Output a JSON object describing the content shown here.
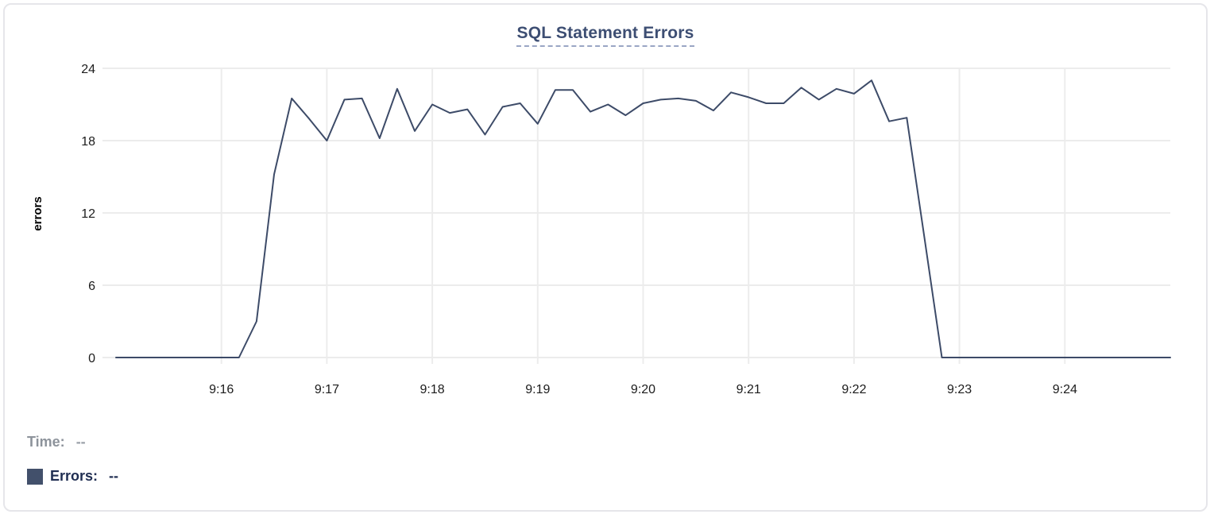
{
  "header": {
    "title": "SQL Statement Errors"
  },
  "tooltip_readout": {
    "time_label": "Time:",
    "time_value": "--",
    "errors_label": "Errors:",
    "errors_value": "--",
    "swatch_color": "#42506b"
  },
  "colors": {
    "title": "#3d4e73",
    "title_underline": "#9aa6c4",
    "line": "#3d4b68",
    "gridline": "#ececec",
    "tick_text": "#1c1c1c",
    "card_border": "#e6e6ea",
    "time_text": "#8d939b",
    "errors_text": "#202e52"
  },
  "chart_data": {
    "type": "line",
    "title": "SQL Statement Errors",
    "xlabel": "",
    "ylabel": "errors",
    "ylim": [
      0,
      24
    ],
    "y_ticks": [
      0,
      6,
      12,
      18,
      24
    ],
    "x_domain": [
      "9:15:00",
      "9:25:00"
    ],
    "x_tick_labels": [
      "9:16",
      "9:17",
      "9:18",
      "9:19",
      "9:20",
      "9:21",
      "9:22",
      "9:23",
      "9:24"
    ],
    "grid": true,
    "legend_position": "none",
    "sample_interval_seconds": 10,
    "series": [
      {
        "name": "Errors",
        "color": "#3d4b68",
        "times": [
          "9:15:00",
          "9:15:10",
          "9:15:20",
          "9:15:30",
          "9:15:40",
          "9:15:50",
          "9:16:00",
          "9:16:10",
          "9:16:20",
          "9:16:30",
          "9:16:40",
          "9:16:50",
          "9:17:00",
          "9:17:10",
          "9:17:20",
          "9:17:30",
          "9:17:40",
          "9:17:50",
          "9:18:00",
          "9:18:10",
          "9:18:20",
          "9:18:30",
          "9:18:40",
          "9:18:50",
          "9:19:00",
          "9:19:10",
          "9:19:20",
          "9:19:30",
          "9:19:40",
          "9:19:50",
          "9:20:00",
          "9:20:10",
          "9:20:20",
          "9:20:30",
          "9:20:40",
          "9:20:50",
          "9:21:00",
          "9:21:10",
          "9:21:20",
          "9:21:30",
          "9:21:40",
          "9:21:50",
          "9:22:00",
          "9:22:10",
          "9:22:20",
          "9:22:30",
          "9:22:40",
          "9:22:50",
          "9:23:00",
          "9:23:10",
          "9:23:20",
          "9:23:30",
          "9:23:40",
          "9:23:50",
          "9:24:00",
          "9:24:10",
          "9:24:20",
          "9:24:30",
          "9:24:40",
          "9:24:50",
          "9:25:00"
        ],
        "values": [
          0,
          0,
          0,
          0,
          0,
          0,
          0,
          0,
          3,
          15.2,
          21.5,
          19.8,
          18,
          21.4,
          21.5,
          18.2,
          22.3,
          18.8,
          21,
          20.3,
          20.6,
          18.5,
          20.8,
          21.1,
          19.4,
          22.2,
          22.2,
          20.4,
          21,
          20.1,
          21.1,
          21.4,
          21.5,
          21.3,
          20.5,
          22,
          21.6,
          21.1,
          21.1,
          22.4,
          21.4,
          22.3,
          21.9,
          23,
          19.6,
          19.9,
          10,
          0,
          0,
          0,
          0,
          0,
          0,
          0,
          0,
          0,
          0,
          0,
          0,
          0,
          0
        ]
      }
    ]
  }
}
